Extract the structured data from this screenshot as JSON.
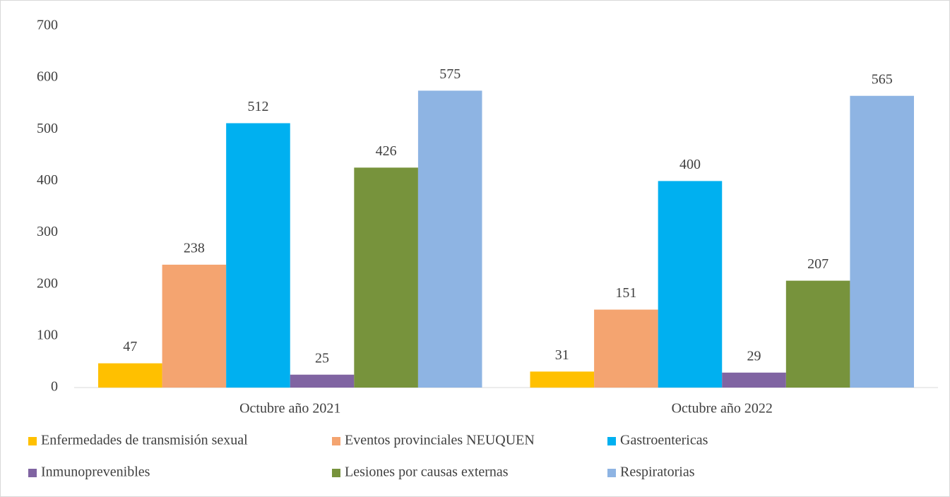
{
  "chart_data": {
    "type": "bar",
    "categories": [
      "Octubre año 2021",
      "Octubre año 2022"
    ],
    "series": [
      {
        "name": "Enfermedades de transmisión sexual",
        "color": "#ffc000",
        "values": [
          47,
          31
        ]
      },
      {
        "name": "Eventos provinciales NEUQUEN",
        "color": "#f4a470",
        "values": [
          238,
          151
        ]
      },
      {
        "name": "Gastroentericas",
        "color": "#00b0f0",
        "values": [
          512,
          400
        ]
      },
      {
        "name": "Inmunoprevenibles",
        "color": "#8064a2",
        "values": [
          25,
          29
        ]
      },
      {
        "name": "Lesiones por causas externas",
        "color": "#77933c",
        "values": [
          426,
          207
        ]
      },
      {
        "name": "Respiratorias",
        "color": "#8eb4e3",
        "values": [
          575,
          565
        ]
      }
    ],
    "ylim": [
      0,
      700
    ],
    "yticks": [
      0,
      100,
      200,
      300,
      400,
      500,
      600,
      700
    ],
    "grid": false,
    "legend": "bottom"
  }
}
